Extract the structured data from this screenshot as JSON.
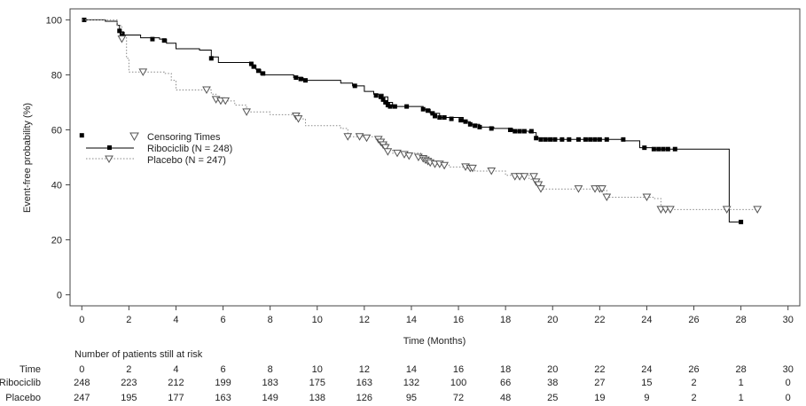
{
  "chart_data": {
    "type": "line",
    "xlabel": "Time (Months)",
    "ylabel": "Event-free probability (%)",
    "xlim": [
      -0.5,
      30.5
    ],
    "ylim": [
      -4,
      104
    ],
    "xticks": [
      0,
      2,
      4,
      6,
      8,
      10,
      12,
      14,
      16,
      18,
      20,
      22,
      24,
      26,
      28,
      30
    ],
    "yticks": [
      0,
      20,
      40,
      60,
      80,
      100
    ],
    "legend": {
      "placement": "center-left",
      "title": "Censoring Times",
      "entries": [
        "Ribociclib (N = 248)",
        "Placebo (N = 247)"
      ]
    },
    "series": [
      {
        "name": "Ribociclib (N = 248)",
        "color": "#000000",
        "line_style": "solid",
        "censor_marker": "filled-square",
        "steps": [
          [
            0,
            100
          ],
          [
            1.0,
            99.5
          ],
          [
            1.5,
            98
          ],
          [
            1.6,
            95.5
          ],
          [
            1.8,
            94.5
          ],
          [
            2.5,
            93.5
          ],
          [
            3.3,
            93
          ],
          [
            3.6,
            91.5
          ],
          [
            4.0,
            89.5
          ],
          [
            5.0,
            89
          ],
          [
            5.5,
            86.5
          ],
          [
            5.8,
            84.5
          ],
          [
            7.2,
            83.5
          ],
          [
            7.4,
            82
          ],
          [
            7.6,
            80
          ],
          [
            9.0,
            79
          ],
          [
            9.4,
            78
          ],
          [
            11.0,
            77
          ],
          [
            11.5,
            76
          ],
          [
            12.0,
            74
          ],
          [
            12.4,
            73
          ],
          [
            12.8,
            72
          ],
          [
            13.0,
            70
          ],
          [
            13.2,
            68.5
          ],
          [
            14.5,
            67.5
          ],
          [
            14.8,
            66
          ],
          [
            15.2,
            64.5
          ],
          [
            16.2,
            63
          ],
          [
            16.5,
            62
          ],
          [
            16.9,
            61
          ],
          [
            17.5,
            60.5
          ],
          [
            18.3,
            59.5
          ],
          [
            19.0,
            59
          ],
          [
            19.3,
            57
          ],
          [
            19.7,
            56.5
          ],
          [
            23.0,
            56
          ],
          [
            23.7,
            53.5
          ],
          [
            24.3,
            53
          ],
          [
            27.5,
            26.5
          ],
          [
            28.0,
            26.5
          ]
        ],
        "censors": [
          [
            0.1,
            100
          ],
          [
            1.6,
            96
          ],
          [
            1.7,
            95
          ],
          [
            3.0,
            93
          ],
          [
            3.5,
            92.5
          ],
          [
            5.5,
            86
          ],
          [
            7.2,
            84
          ],
          [
            7.3,
            83
          ],
          [
            7.5,
            81.5
          ],
          [
            7.7,
            80.5
          ],
          [
            9.1,
            79
          ],
          [
            9.3,
            78.5
          ],
          [
            9.5,
            78
          ],
          [
            11.6,
            76
          ],
          [
            12.5,
            72.5
          ],
          [
            12.7,
            72
          ],
          [
            12.8,
            71
          ],
          [
            12.9,
            70
          ],
          [
            13.0,
            69
          ],
          [
            13.1,
            68.5
          ],
          [
            13.3,
            68.5
          ],
          [
            13.8,
            68.5
          ],
          [
            14.5,
            67.5
          ],
          [
            14.7,
            67
          ],
          [
            14.9,
            66
          ],
          [
            15.0,
            65
          ],
          [
            15.2,
            64.5
          ],
          [
            15.4,
            64.5
          ],
          [
            15.7,
            64
          ],
          [
            16.1,
            63.5
          ],
          [
            16.3,
            63
          ],
          [
            16.5,
            62
          ],
          [
            16.7,
            61.5
          ],
          [
            16.9,
            61
          ],
          [
            17.4,
            60.5
          ],
          [
            18.2,
            60
          ],
          [
            18.4,
            59.5
          ],
          [
            18.6,
            59.5
          ],
          [
            18.8,
            59.5
          ],
          [
            19.1,
            59.5
          ],
          [
            19.3,
            57
          ],
          [
            19.5,
            56.5
          ],
          [
            19.7,
            56.5
          ],
          [
            19.9,
            56.5
          ],
          [
            20.1,
            56.5
          ],
          [
            20.4,
            56.5
          ],
          [
            20.7,
            56.5
          ],
          [
            21.1,
            56.5
          ],
          [
            21.4,
            56.5
          ],
          [
            21.6,
            56.5
          ],
          [
            21.8,
            56.5
          ],
          [
            22.0,
            56.5
          ],
          [
            22.3,
            56.5
          ],
          [
            23.0,
            56.5
          ],
          [
            23.9,
            53.5
          ],
          [
            24.3,
            53
          ],
          [
            24.5,
            53
          ],
          [
            24.7,
            53
          ],
          [
            24.9,
            53
          ],
          [
            25.2,
            53
          ],
          [
            28.0,
            26.5
          ],
          [
            0.0,
            58
          ]
        ]
      },
      {
        "name": "Placebo (N = 247)",
        "color": "#888888",
        "line_style": "dotted",
        "censor_marker": "open-triangle",
        "steps": [
          [
            0,
            100
          ],
          [
            1.5,
            98
          ],
          [
            1.7,
            93.5
          ],
          [
            1.9,
            86
          ],
          [
            2.0,
            81
          ],
          [
            3.5,
            80.5
          ],
          [
            3.8,
            78
          ],
          [
            4.0,
            74.5
          ],
          [
            5.5,
            73
          ],
          [
            5.7,
            70.5
          ],
          [
            6.5,
            69
          ],
          [
            7.0,
            66.5
          ],
          [
            8.0,
            65.5
          ],
          [
            9.2,
            64
          ],
          [
            9.5,
            61.5
          ],
          [
            11.0,
            60.5
          ],
          [
            11.3,
            57.5
          ],
          [
            12.5,
            56.5
          ],
          [
            12.8,
            55
          ],
          [
            13.0,
            53
          ],
          [
            13.2,
            51.5
          ],
          [
            14.4,
            50
          ],
          [
            14.7,
            48.5
          ],
          [
            15.0,
            47.5
          ],
          [
            15.6,
            46.5
          ],
          [
            16.4,
            45.5
          ],
          [
            16.7,
            45
          ],
          [
            18.0,
            43.5
          ],
          [
            19.0,
            42
          ],
          [
            19.3,
            40
          ],
          [
            19.5,
            38.5
          ],
          [
            22.1,
            38
          ],
          [
            22.3,
            35.5
          ],
          [
            24.3,
            35
          ],
          [
            24.6,
            31
          ],
          [
            28.8,
            31
          ]
        ],
        "censors": [
          [
            1.7,
            93
          ],
          [
            2.6,
            81
          ],
          [
            5.3,
            74.5
          ],
          [
            5.7,
            71
          ],
          [
            5.9,
            70.5
          ],
          [
            6.1,
            70.5
          ],
          [
            7.0,
            66.5
          ],
          [
            9.1,
            65
          ],
          [
            9.2,
            64
          ],
          [
            11.3,
            57.5
          ],
          [
            11.8,
            57.5
          ],
          [
            12.1,
            57
          ],
          [
            12.6,
            56.5
          ],
          [
            12.7,
            55.5
          ],
          [
            12.8,
            54.5
          ],
          [
            12.9,
            53.5
          ],
          [
            13.0,
            52
          ],
          [
            13.4,
            51.5
          ],
          [
            13.7,
            51
          ],
          [
            13.9,
            50.5
          ],
          [
            14.3,
            50
          ],
          [
            14.5,
            49.5
          ],
          [
            14.6,
            49
          ],
          [
            14.7,
            48.5
          ],
          [
            14.8,
            48
          ],
          [
            15.0,
            47.5
          ],
          [
            15.2,
            47.5
          ],
          [
            15.4,
            47
          ],
          [
            16.3,
            46.5
          ],
          [
            16.5,
            46
          ],
          [
            16.6,
            46
          ],
          [
            17.4,
            45
          ],
          [
            18.4,
            43
          ],
          [
            18.6,
            43
          ],
          [
            18.8,
            43
          ],
          [
            19.2,
            43
          ],
          [
            19.3,
            41
          ],
          [
            19.4,
            40
          ],
          [
            19.5,
            38.5
          ],
          [
            21.1,
            38.5
          ],
          [
            21.8,
            38.5
          ],
          [
            22.0,
            38.5
          ],
          [
            22.1,
            38.5
          ],
          [
            22.3,
            35.5
          ],
          [
            24.0,
            35.5
          ],
          [
            24.6,
            31
          ],
          [
            24.8,
            31
          ],
          [
            25.0,
            31
          ],
          [
            27.4,
            31
          ],
          [
            28.7,
            31
          ]
        ]
      }
    ],
    "risk_table": {
      "title": "Number of patients still at risk",
      "header_label": "Time",
      "times": [
        "0",
        "2",
        "4",
        "6",
        "8",
        "10",
        "12",
        "14",
        "16",
        "18",
        "20",
        "22",
        "24",
        "26",
        "28",
        "30"
      ],
      "rows": [
        {
          "label": "Ribociclib",
          "values": [
            "248",
            "223",
            "212",
            "199",
            "183",
            "175",
            "163",
            "132",
            "100",
            "66",
            "38",
            "27",
            "15",
            "2",
            "1",
            "0"
          ]
        },
        {
          "label": "Placebo",
          "values": [
            "247",
            "195",
            "177",
            "163",
            "149",
            "138",
            "126",
            "95",
            "72",
            "48",
            "25",
            "19",
            "9",
            "2",
            "1",
            "0"
          ]
        }
      ]
    }
  }
}
